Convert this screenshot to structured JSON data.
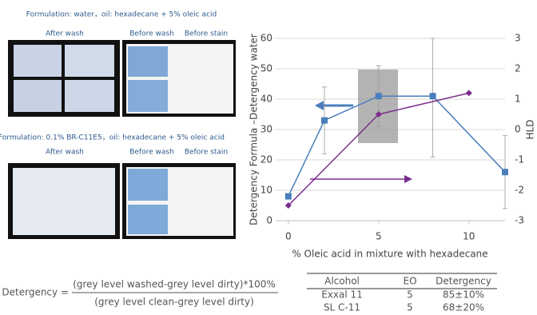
{
  "panels": {
    "top": {
      "title": "Formulation: water，oil: hexadecane + 5% oleic acid",
      "labels": [
        "After wash",
        "Before wash",
        "Before stain"
      ]
    },
    "bottom": {
      "title": "Formulation: 0.1% BR-C11E5，oil: hexadecane + 5% oleic acid",
      "labels": [
        "After wash",
        "Before wash",
        "Before stain"
      ]
    }
  },
  "chart_data": {
    "type": "line",
    "xlabel": "% Oleic acid in mixture with hexadecane",
    "ylabel": "Detergency Formula –Detergency water",
    "y2label": "HLD",
    "xlim": [
      -0.7,
      12
    ],
    "xticks": [
      0,
      5,
      10
    ],
    "ylim": [
      0,
      60
    ],
    "yticks": [
      0,
      10,
      20,
      30,
      40,
      50,
      60
    ],
    "y2lim": [
      -3,
      3
    ],
    "y2ticks": [
      -3,
      -2,
      -1,
      0,
      1,
      2,
      3
    ],
    "grid": true,
    "series": [
      {
        "name": "Detergency",
        "color": "#4a7ebb",
        "marker": "square",
        "x": [
          0,
          2,
          5,
          8,
          12
        ],
        "values": [
          8,
          33,
          41,
          41,
          16
        ],
        "errors": [
          0,
          11,
          10,
          20,
          12
        ]
      },
      {
        "name": "HLD",
        "color": "#7b2d8e",
        "marker": "diamond",
        "axis": "y2",
        "x": [
          0,
          5,
          10
        ],
        "values": [
          -2.5,
          0.5,
          1.2
        ]
      }
    ]
  },
  "formula": {
    "lhs": "Detergency =",
    "numerator": "(grey level washed-grey level dirty)*100%",
    "denominator": "(grey level clean-grey level dirty)"
  },
  "table": {
    "header": [
      "Alcohol",
      "EO",
      "Detergency"
    ],
    "rows": [
      [
        "Exxal 11",
        "5",
        "85±10%"
      ],
      [
        "SL C-11",
        "5",
        "68±20%"
      ]
    ]
  }
}
